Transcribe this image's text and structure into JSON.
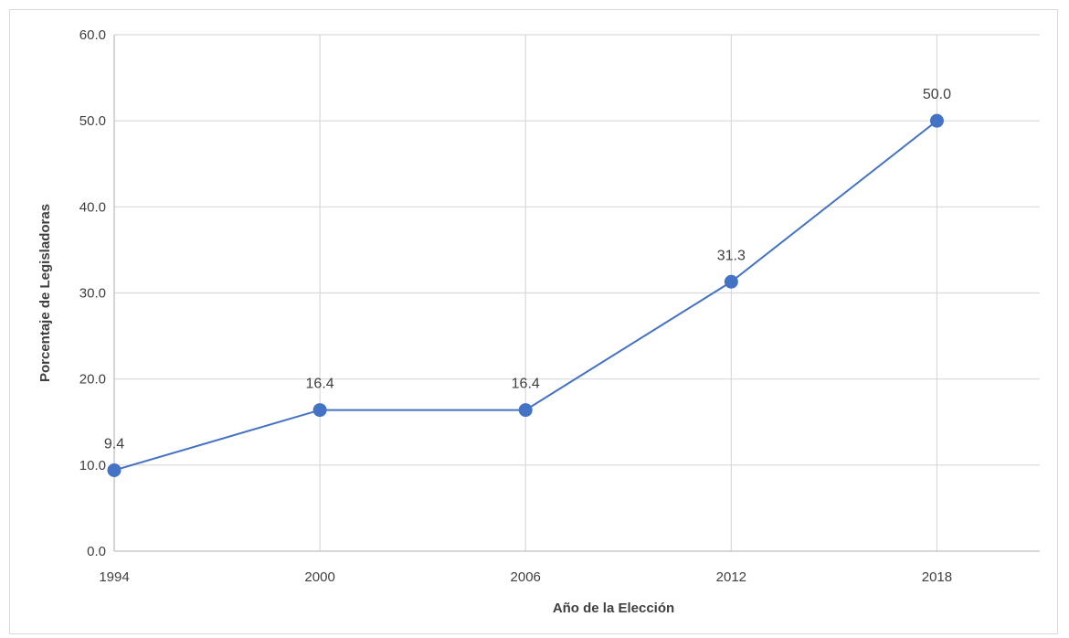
{
  "chart_data": {
    "type": "line",
    "title": "",
    "xlabel": "Año de la Elección",
    "ylabel": "Porcentaje de Legisladoras",
    "categories": [
      "1994",
      "2000",
      "2006",
      "2012",
      "2018"
    ],
    "x_axis_max": 2021,
    "series": [
      {
        "values": [
          9.4,
          16.4,
          16.4,
          31.3,
          50.0
        ],
        "color": "#4472c4"
      }
    ],
    "data_labels": [
      "9.4",
      "16.4",
      "16.4",
      "31.3",
      "50.0"
    ],
    "yticks": [
      "0.0",
      "10.0",
      "20.0",
      "30.0",
      "40.0",
      "50.0",
      "60.0"
    ],
    "ylim": [
      0,
      60
    ],
    "grid": true,
    "legend": "none"
  }
}
